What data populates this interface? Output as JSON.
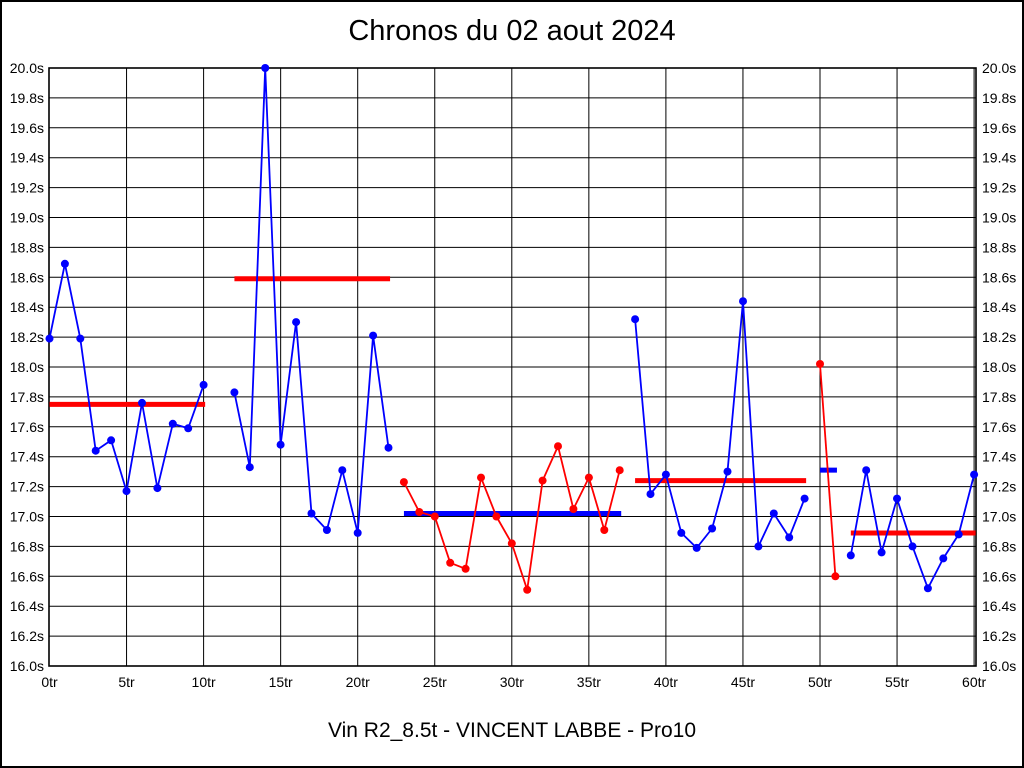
{
  "frame": {
    "background": "#ffffff",
    "border_color": "#000000"
  },
  "chart_data": {
    "type": "line",
    "title": "Chronos du 02 aout 2024",
    "footer": "Vin R2_8.5t - VINCENT LABBE - Pro10",
    "x_unit": "tr",
    "y_unit": "s",
    "grid": true,
    "legend": "none",
    "colors": {
      "blue": "#0000ff",
      "red": "#ff0000",
      "axis": "#000000"
    },
    "axes": {
      "x_min": 0,
      "x_max": 60.2,
      "x_tick_step": 5,
      "y_min": 16.0,
      "y_max": 20.0,
      "y_tick_step": 0.2,
      "x_tick_values": [
        0,
        5,
        10,
        15,
        20,
        25,
        30,
        35,
        40,
        45,
        50,
        55,
        60
      ],
      "x_tick_labels": [
        "0tr",
        "5tr",
        "10tr",
        "15tr",
        "20tr",
        "25tr",
        "30tr",
        "35tr",
        "40tr",
        "45tr",
        "50tr",
        "55tr",
        "60tr"
      ],
      "y_tick_values": [
        20.0,
        19.8,
        19.6,
        19.4,
        19.2,
        19.0,
        18.8,
        18.6,
        18.4,
        18.2,
        18.0,
        17.8,
        17.6,
        17.4,
        17.2,
        17.0,
        16.8,
        16.6,
        16.4,
        16.2,
        16.0
      ],
      "y_tick_labels": [
        "20.0s",
        "19.8s",
        "19.6s",
        "19.4s",
        "19.2s",
        "19.0s",
        "18.8s",
        "18.6s",
        "18.4s",
        "18.2s",
        "18.0s",
        "17.8s",
        "17.6s",
        "17.4s",
        "17.2s",
        "17.0s",
        "16.8s",
        "16.6s",
        "16.4s",
        "16.2s",
        "16.0s"
      ]
    },
    "series": [
      {
        "name": "stint-1",
        "color": "blue",
        "points": [
          [
            0,
            18.19
          ],
          [
            1,
            18.69
          ],
          [
            2,
            18.19
          ],
          [
            3,
            17.44
          ],
          [
            4,
            17.51
          ],
          [
            5,
            17.17
          ],
          [
            6,
            17.76
          ],
          [
            7,
            17.19
          ],
          [
            8,
            17.62
          ],
          [
            9,
            17.59
          ],
          [
            10,
            17.88
          ]
        ]
      },
      {
        "name": "stint-2",
        "color": "blue",
        "points": [
          [
            12,
            17.83
          ],
          [
            13,
            17.33
          ],
          [
            14,
            20.0
          ],
          [
            15,
            17.48
          ],
          [
            16,
            18.3
          ],
          [
            17,
            17.02
          ],
          [
            18,
            16.91
          ],
          [
            19,
            17.31
          ],
          [
            20,
            16.89
          ],
          [
            21,
            18.21
          ],
          [
            22,
            17.46
          ]
        ]
      },
      {
        "name": "stint-3",
        "color": "red",
        "points": [
          [
            23,
            17.23
          ],
          [
            24,
            17.03
          ],
          [
            25,
            17.0
          ],
          [
            26,
            16.69
          ],
          [
            27,
            16.65
          ],
          [
            28,
            17.26
          ],
          [
            29,
            17.0
          ],
          [
            30,
            16.82
          ],
          [
            31,
            16.51
          ],
          [
            32,
            17.24
          ],
          [
            33,
            17.47
          ],
          [
            34,
            17.05
          ],
          [
            35,
            17.26
          ],
          [
            36,
            16.91
          ],
          [
            37,
            17.31
          ]
        ]
      },
      {
        "name": "stint-4",
        "color": "blue",
        "points": [
          [
            38,
            18.32
          ],
          [
            39,
            17.15
          ],
          [
            40,
            17.28
          ],
          [
            41,
            16.89
          ],
          [
            42,
            16.79
          ],
          [
            43,
            16.92
          ],
          [
            44,
            17.3
          ],
          [
            45,
            18.44
          ],
          [
            46,
            16.8
          ],
          [
            47,
            17.02
          ],
          [
            48,
            16.86
          ],
          [
            49,
            17.12
          ]
        ]
      },
      {
        "name": "stint-5",
        "color": "red",
        "points": [
          [
            50,
            18.02
          ],
          [
            51,
            16.6
          ]
        ]
      },
      {
        "name": "stint-6",
        "color": "blue",
        "points": [
          [
            52,
            16.74
          ],
          [
            53,
            17.31
          ],
          [
            54,
            16.76
          ],
          [
            55,
            17.12
          ],
          [
            56,
            16.8
          ],
          [
            57,
            16.52
          ],
          [
            58,
            16.72
          ],
          [
            59,
            16.88
          ],
          [
            60,
            17.28
          ]
        ]
      }
    ],
    "reference_lines": [
      {
        "name": "avg-stint-1",
        "color": "red",
        "y": 17.75,
        "x_start": 0,
        "x_end": 10.1
      },
      {
        "name": "avg-stint-2",
        "color": "red",
        "y": 18.59,
        "x_start": 12,
        "x_end": 22.1
      },
      {
        "name": "avg-stint-3",
        "color": "blue",
        "y": 17.02,
        "x_start": 23,
        "x_end": 37.1
      },
      {
        "name": "avg-stint-4",
        "color": "red",
        "y": 17.24,
        "x_start": 38,
        "x_end": 49.1
      },
      {
        "name": "avg-stint-5",
        "color": "blue",
        "y": 17.31,
        "x_start": 50,
        "x_end": 51.1
      },
      {
        "name": "avg-stint-6",
        "color": "red",
        "y": 16.89,
        "x_start": 52,
        "x_end": 60.1
      }
    ]
  }
}
